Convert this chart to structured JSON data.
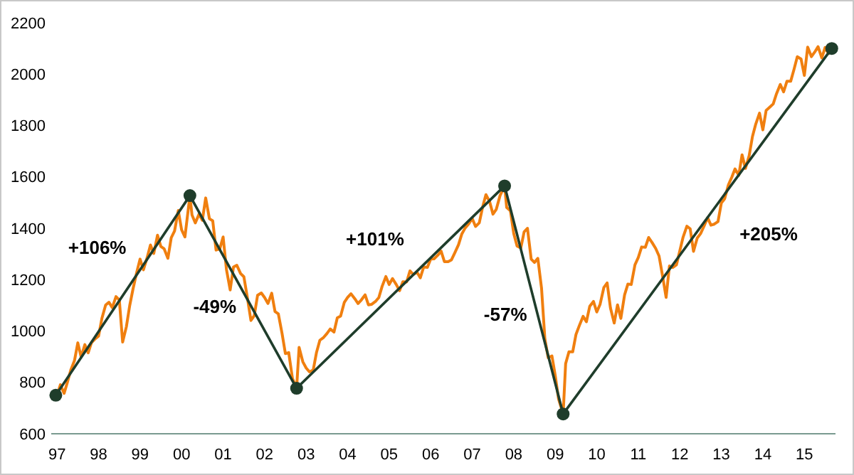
{
  "chart_data": {
    "type": "line",
    "xlim": [
      1996.86,
      2015.75
    ],
    "xticks": [
      {
        "value": 1997,
        "label": "97"
      },
      {
        "value": 1998,
        "label": "98"
      },
      {
        "value": 1999,
        "label": "99"
      },
      {
        "value": 2000,
        "label": "00"
      },
      {
        "value": 2001,
        "label": "01"
      },
      {
        "value": 2002,
        "label": "02"
      },
      {
        "value": 2003,
        "label": "03"
      },
      {
        "value": 2004,
        "label": "04"
      },
      {
        "value": 2005,
        "label": "05"
      },
      {
        "value": 2006,
        "label": "06"
      },
      {
        "value": 2007,
        "label": "07"
      },
      {
        "value": 2008,
        "label": "08"
      },
      {
        "value": 2009,
        "label": "09"
      },
      {
        "value": 2010,
        "label": "10"
      },
      {
        "value": 2011,
        "label": "11"
      },
      {
        "value": 2012,
        "label": "12"
      },
      {
        "value": 2013,
        "label": "13"
      },
      {
        "value": 2014,
        "label": "14"
      },
      {
        "value": 2015,
        "label": "15"
      }
    ],
    "ylim": [
      600,
      2200
    ],
    "yticks": [
      600,
      800,
      1000,
      1200,
      1400,
      1600,
      1800,
      2000,
      2200
    ],
    "grid": false,
    "series": [
      {
        "color": "#f07f0f",
        "marker": "none",
        "x": [
          1997.0,
          1997.08,
          1997.17,
          1997.25,
          1997.33,
          1997.42,
          1997.5,
          1997.58,
          1997.67,
          1997.75,
          1997.83,
          1997.92,
          1998.0,
          1998.08,
          1998.17,
          1998.25,
          1998.33,
          1998.42,
          1998.5,
          1998.58,
          1998.67,
          1998.75,
          1998.83,
          1998.92,
          1999.0,
          1999.08,
          1999.17,
          1999.25,
          1999.33,
          1999.42,
          1999.5,
          1999.58,
          1999.67,
          1999.75,
          1999.83,
          1999.92,
          2000.0,
          2000.08,
          2000.2,
          2000.25,
          2000.33,
          2000.42,
          2000.5,
          2000.58,
          2000.67,
          2000.75,
          2000.83,
          2000.92,
          2001.0,
          2001.08,
          2001.17,
          2001.25,
          2001.33,
          2001.42,
          2001.5,
          2001.58,
          2001.67,
          2001.75,
          2001.83,
          2001.92,
          2002.0,
          2002.08,
          2002.17,
          2002.25,
          2002.33,
          2002.42,
          2002.5,
          2002.58,
          2002.67,
          2002.77,
          2002.83,
          2002.92,
          2003.0,
          2003.08,
          2003.17,
          2003.25,
          2003.33,
          2003.42,
          2003.5,
          2003.58,
          2003.67,
          2003.75,
          2003.83,
          2003.92,
          2004.0,
          2004.08,
          2004.17,
          2004.25,
          2004.33,
          2004.42,
          2004.5,
          2004.58,
          2004.67,
          2004.75,
          2004.83,
          2004.92,
          2005.0,
          2005.08,
          2005.17,
          2005.25,
          2005.33,
          2005.42,
          2005.5,
          2005.58,
          2005.67,
          2005.75,
          2005.83,
          2005.92,
          2006.0,
          2006.08,
          2006.17,
          2006.25,
          2006.33,
          2006.42,
          2006.5,
          2006.58,
          2006.67,
          2006.75,
          2006.83,
          2006.92,
          2007.0,
          2007.08,
          2007.17,
          2007.25,
          2007.33,
          2007.42,
          2007.5,
          2007.58,
          2007.67,
          2007.78,
          2007.83,
          2007.92,
          2008.0,
          2008.08,
          2008.17,
          2008.25,
          2008.33,
          2008.42,
          2008.5,
          2008.58,
          2008.67,
          2008.75,
          2008.83,
          2008.92,
          2009.0,
          2009.08,
          2009.19,
          2009.25,
          2009.33,
          2009.42,
          2009.5,
          2009.58,
          2009.67,
          2009.75,
          2009.83,
          2009.92,
          2010.0,
          2010.08,
          2010.17,
          2010.25,
          2010.33,
          2010.42,
          2010.5,
          2010.58,
          2010.67,
          2010.75,
          2010.83,
          2010.92,
          2011.0,
          2011.08,
          2011.17,
          2011.25,
          2011.33,
          2011.42,
          2011.5,
          2011.58,
          2011.67,
          2011.75,
          2011.83,
          2011.92,
          2012.0,
          2012.08,
          2012.17,
          2012.25,
          2012.33,
          2012.42,
          2012.5,
          2012.58,
          2012.67,
          2012.75,
          2012.83,
          2012.92,
          2013.0,
          2013.08,
          2013.17,
          2013.25,
          2013.33,
          2013.42,
          2013.5,
          2013.58,
          2013.67,
          2013.75,
          2013.83,
          2013.92,
          2014.0,
          2014.08,
          2014.17,
          2014.25,
          2014.33,
          2014.42,
          2014.5,
          2014.58,
          2014.67,
          2014.75,
          2014.83,
          2014.92,
          2015.0,
          2015.08,
          2015.17,
          2015.25,
          2015.33,
          2015.42,
          2015.5,
          2015.58,
          2015.66
        ],
        "values": [
          750,
          791,
          757,
          801,
          848,
          885,
          954,
          899,
          947,
          915,
          955,
          970,
          980,
          1049,
          1101,
          1112,
          1091,
          1134,
          1121,
          957,
          1017,
          1099,
          1164,
          1229,
          1280,
          1238,
          1286,
          1335,
          1302,
          1373,
          1329,
          1320,
          1283,
          1363,
          1389,
          1469,
          1394,
          1366,
          1527,
          1452,
          1421,
          1455,
          1431,
          1518,
          1437,
          1429,
          1315,
          1320,
          1366,
          1240,
          1160,
          1249,
          1256,
          1224,
          1211,
          1134,
          1041,
          1060,
          1139,
          1148,
          1130,
          1107,
          1147,
          1076,
          1067,
          990,
          912,
          916,
          815,
          777,
          936,
          880,
          856,
          841,
          848,
          917,
          964,
          975,
          990,
          1008,
          996,
          1051,
          1058,
          1112,
          1131,
          1145,
          1126,
          1107,
          1121,
          1141,
          1102,
          1104,
          1115,
          1130,
          1174,
          1212,
          1181,
          1204,
          1181,
          1157,
          1192,
          1191,
          1234,
          1220,
          1229,
          1207,
          1249,
          1248,
          1280,
          1281,
          1295,
          1311,
          1270,
          1270,
          1277,
          1304,
          1336,
          1378,
          1401,
          1418,
          1438,
          1407,
          1421,
          1482,
          1531,
          1503,
          1455,
          1474,
          1527,
          1565,
          1481,
          1468,
          1379,
          1331,
          1323,
          1386,
          1400,
          1280,
          1267,
          1283,
          1166,
          969,
          896,
          903,
          826,
          735,
          677,
          873,
          919,
          919,
          987,
          1021,
          1057,
          1036,
          1096,
          1115,
          1074,
          1104,
          1169,
          1187,
          1089,
          1031,
          1102,
          1049,
          1141,
          1183,
          1181,
          1258,
          1286,
          1327,
          1326,
          1364,
          1345,
          1321,
          1292,
          1219,
          1131,
          1253,
          1247,
          1258,
          1312,
          1366,
          1408,
          1398,
          1310,
          1362,
          1379,
          1407,
          1441,
          1412,
          1416,
          1426,
          1498,
          1515,
          1569,
          1598,
          1631,
          1606,
          1686,
          1633,
          1682,
          1757,
          1806,
          1848,
          1783,
          1859,
          1872,
          1884,
          1924,
          1960,
          1931,
          1972,
          1972,
          2018,
          2068,
          2059,
          1995,
          2105,
          2068,
          2086,
          2107,
          2063,
          2104,
          2080,
          2100
        ]
      },
      {
        "color": "#1f3d2b",
        "marker": "circle",
        "x": [
          1996.97,
          2000.2,
          2002.77,
          2007.78,
          2009.19,
          2015.66
        ],
        "values": [
          750,
          1527,
          777,
          1565,
          677,
          2100
        ]
      }
    ],
    "annotations": [
      "+106%",
      "-49%",
      "+101%",
      "-57%",
      "+205%"
    ]
  }
}
